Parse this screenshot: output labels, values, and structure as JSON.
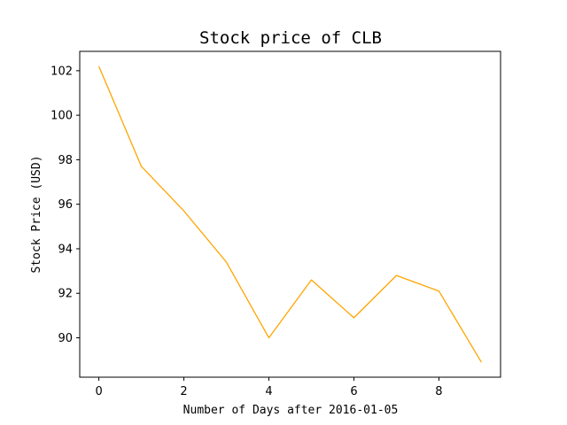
{
  "chart_data": {
    "type": "line",
    "title": "Stock price of CLB",
    "xlabel": "Number of Days after 2016-01-05",
    "ylabel": "Stock Price (USD)",
    "x": [
      0,
      1,
      2,
      3,
      4,
      5,
      6,
      7,
      8,
      9
    ],
    "series": [
      {
        "values": [
          102.2,
          97.7,
          95.7,
          93.4,
          90.0,
          92.6,
          90.9,
          92.8,
          92.1,
          88.9
        ],
        "color": "#FFA500"
      }
    ],
    "xlim": [
      -0.45,
      9.45
    ],
    "ylim": [
      88.23,
      102.87
    ],
    "xticks": [
      0,
      2,
      4,
      6,
      8
    ],
    "yticks": [
      90,
      92,
      94,
      96,
      98,
      100,
      102
    ],
    "grid": false,
    "legend": "none"
  }
}
